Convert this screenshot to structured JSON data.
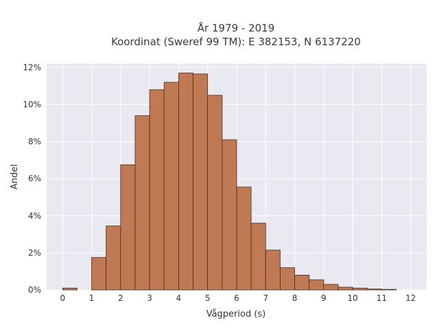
{
  "chart_data": {
    "type": "bar",
    "title": "År 1979 - 2019",
    "subtitle": "Koordinat (Sweref 99 TM): E 382153, N 6137220",
    "xlabel": "Vågperiod (s)",
    "ylabel": "Andel",
    "bin_width": 0.5,
    "bins": [
      {
        "start": 0.0,
        "value": 0.1
      },
      {
        "start": 1.0,
        "value": 1.75
      },
      {
        "start": 1.5,
        "value": 3.45
      },
      {
        "start": 2.0,
        "value": 6.75
      },
      {
        "start": 2.5,
        "value": 9.4
      },
      {
        "start": 3.0,
        "value": 10.8
      },
      {
        "start": 3.5,
        "value": 11.2
      },
      {
        "start": 4.0,
        "value": 11.7
      },
      {
        "start": 4.5,
        "value": 11.65
      },
      {
        "start": 5.0,
        "value": 10.5
      },
      {
        "start": 5.5,
        "value": 8.1
      },
      {
        "start": 6.0,
        "value": 5.55
      },
      {
        "start": 6.5,
        "value": 3.6
      },
      {
        "start": 7.0,
        "value": 2.15
      },
      {
        "start": 7.5,
        "value": 1.2
      },
      {
        "start": 8.0,
        "value": 0.8
      },
      {
        "start": 8.5,
        "value": 0.55
      },
      {
        "start": 9.0,
        "value": 0.3
      },
      {
        "start": 9.5,
        "value": 0.15
      },
      {
        "start": 10.0,
        "value": 0.1
      },
      {
        "start": 10.5,
        "value": 0.05
      },
      {
        "start": 11.0,
        "value": 0.03
      }
    ],
    "xlim": [
      -0.55,
      12.55
    ],
    "ylim": [
      0,
      12.2
    ],
    "x_ticks": [
      0,
      1,
      2,
      3,
      4,
      5,
      6,
      7,
      8,
      9,
      10,
      11,
      12
    ],
    "x_tick_labels": [
      "0",
      "1",
      "2",
      "3",
      "4",
      "5",
      "6",
      "7",
      "8",
      "9",
      "10",
      "11",
      "12"
    ],
    "y_ticks": [
      0,
      2,
      4,
      6,
      8,
      10,
      12
    ],
    "y_tick_labels": [
      "0%",
      "2%",
      "4%",
      "6%",
      "8%",
      "10%",
      "12%"
    ],
    "grid": true,
    "colors": {
      "bar_fill": "#c07a53",
      "bar_stroke": "#4a2a1a",
      "plot_bg": "#e9e9f1",
      "grid": "#ffffff"
    }
  }
}
